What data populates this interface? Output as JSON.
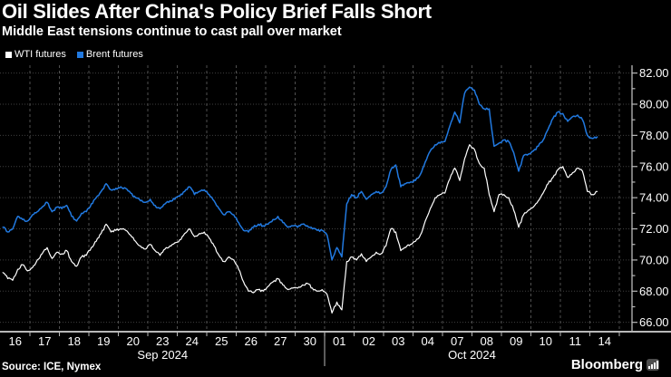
{
  "header": {
    "title": "Oil Slides After China's Policy Brief Falls Short",
    "subtitle": "Middle East tensions continue to cast pall over market"
  },
  "legend": {
    "items": [
      {
        "label": "WTI futures",
        "color": "#ffffff"
      },
      {
        "label": "Brent futures",
        "color": "#2179e0"
      }
    ]
  },
  "footer": {
    "source": "Source: ICE, Nymex",
    "brand": "Bloomberg",
    "brand_icon": "bar-chart-icon"
  },
  "colors": {
    "background": "#000000",
    "text": "#ffffff",
    "grid_horizontal": "#3f3f3f",
    "grid_vertical": "#505050",
    "axis": "#b8b8b8",
    "month_separator": "#9a9a9a"
  },
  "chart_data": {
    "type": "line",
    "title": "Oil Slides After China's Policy Brief Falls Short",
    "subtitle": "Middle East tensions continue to cast pall over market",
    "legend_position": "top-left",
    "grid": {
      "horizontal": "dotted",
      "vertical": "dashed-at-day-boundaries"
    },
    "x_axis": {
      "months": [
        {
          "label": "Sep 2024",
          "days": [
            "16",
            "17",
            "18",
            "19",
            "20",
            "23",
            "24",
            "25",
            "26",
            "27",
            "30"
          ]
        },
        {
          "label": "Oct 2024",
          "days": [
            "01",
            "02",
            "03",
            "04",
            "07",
            "08",
            "09",
            "10",
            "11",
            "14"
          ]
        }
      ]
    },
    "y_axis": {
      "side": "right",
      "ylim": [
        65.4,
        82.5
      ],
      "tick_step": 2,
      "minor_tick_step": 1,
      "tick_labels": [
        "66.00",
        "68.00",
        "70.00",
        "72.00",
        "74.00",
        "76.00",
        "78.00",
        "80.00",
        "82.00"
      ]
    },
    "points_per_day": 6,
    "series": [
      {
        "name": "WTI futures",
        "color": "#ffffff",
        "values": [
          69.2,
          68.8,
          68.7,
          69.4,
          69.7,
          69.3,
          69.5,
          70.0,
          70.4,
          70.8,
          70.1,
          70.5,
          70.4,
          70.6,
          69.9,
          69.6,
          70.2,
          70.3,
          70.8,
          71.2,
          71.7,
          72.3,
          71.8,
          71.9,
          72.0,
          71.9,
          71.6,
          71.2,
          70.9,
          70.7,
          71.0,
          70.6,
          70.3,
          70.7,
          70.9,
          71.1,
          71.3,
          71.7,
          72.0,
          71.5,
          71.7,
          71.8,
          71.4,
          70.9,
          70.3,
          69.9,
          70.2,
          70.0,
          69.4,
          68.6,
          68.0,
          67.9,
          68.1,
          68.0,
          68.3,
          68.6,
          68.8,
          68.4,
          68.1,
          68.2,
          68.2,
          68.4,
          68.5,
          68.2,
          68.0,
          68.1,
          67.8,
          66.6,
          67.3,
          66.8,
          69.9,
          70.2,
          70.0,
          70.4,
          69.9,
          70.2,
          70.5,
          70.4,
          70.9,
          72.0,
          71.8,
          70.6,
          70.8,
          71.0,
          71.2,
          71.6,
          72.5,
          73.3,
          74.0,
          74.2,
          74.3,
          75.2,
          75.9,
          75.1,
          76.5,
          77.4,
          77.1,
          76.2,
          75.9,
          74.2,
          73.1,
          74.2,
          74.2,
          74.0,
          73.2,
          72.1,
          72.9,
          73.2,
          73.4,
          73.8,
          74.3,
          74.9,
          75.3,
          75.8,
          76.0,
          75.3,
          75.6,
          75.9,
          75.7,
          74.4,
          74.2,
          74.4
        ]
      },
      {
        "name": "Brent futures",
        "color": "#2179e0",
        "values": [
          72.1,
          71.8,
          72.0,
          72.8,
          72.6,
          72.5,
          72.9,
          73.1,
          73.4,
          73.7,
          73.1,
          73.4,
          73.3,
          73.5,
          72.8,
          72.5,
          73.0,
          73.1,
          73.6,
          74.0,
          74.4,
          74.9,
          74.5,
          74.6,
          74.7,
          74.6,
          74.3,
          74.0,
          73.8,
          73.7,
          73.9,
          73.5,
          73.3,
          73.6,
          73.8,
          73.9,
          74.1,
          74.4,
          74.7,
          74.2,
          74.4,
          74.5,
          74.2,
          73.8,
          73.3,
          72.9,
          73.1,
          72.9,
          72.4,
          71.9,
          71.8,
          72.1,
          72.3,
          72.2,
          72.3,
          72.6,
          72.8,
          72.4,
          72.1,
          72.2,
          72.1,
          72.3,
          72.2,
          72.0,
          71.9,
          71.9,
          71.6,
          70.0,
          70.8,
          70.2,
          73.6,
          74.2,
          74.0,
          74.4,
          73.9,
          74.2,
          74.4,
          74.3,
          74.7,
          75.8,
          76.1,
          74.7,
          74.9,
          75.0,
          75.1,
          75.5,
          76.3,
          77.0,
          77.4,
          77.5,
          77.6,
          78.6,
          79.5,
          78.8,
          80.7,
          81.1,
          80.9,
          80.0,
          79.7,
          79.7,
          77.3,
          77.5,
          77.7,
          77.6,
          76.9,
          75.7,
          76.7,
          76.8,
          77.0,
          77.3,
          77.7,
          78.4,
          79.1,
          79.5,
          79.4,
          78.9,
          79.2,
          79.3,
          79.0,
          78.0,
          77.8,
          77.9
        ]
      }
    ]
  }
}
